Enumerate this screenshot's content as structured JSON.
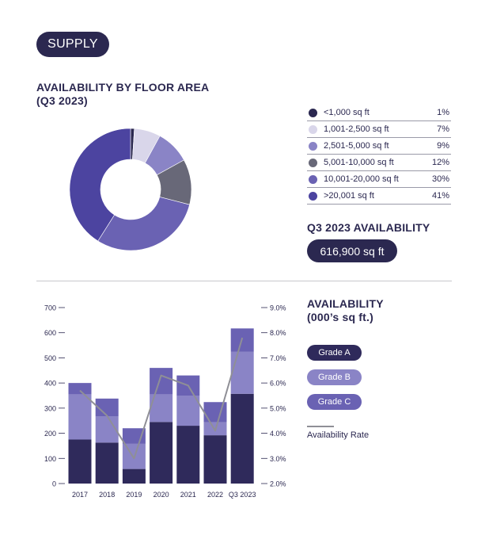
{
  "header": {
    "section_label": "SUPPLY"
  },
  "donut": {
    "title": "AVAILABILITY BY FLOOR AREA",
    "subtitle": "(Q3 2023)",
    "availability_title": "Q3 2023 AVAILABILITY",
    "availability_value": "616,900 sq ft"
  },
  "bars": {
    "title": "AVAILABILITY",
    "subtitle": "(000’s sq ft.)",
    "grade_a": "Grade A",
    "grade_b": "Grade B",
    "grade_c": "Grade C",
    "rate_label": "Availability Rate"
  },
  "chart_data": [
    {
      "type": "pie",
      "title": "AVAILABILITY BY FLOOR AREA (Q3 2023)",
      "categories": [
        "<1,000 sq ft",
        "1,001-2,500 sq ft",
        "2,501-5,000 sq ft",
        "5,001-10,000 sq ft",
        "10,001-20,000 sq ft",
        ">20,001 sq ft"
      ],
      "values": [
        1,
        7,
        9,
        12,
        30,
        41
      ],
      "value_labels": [
        "1%",
        "7%",
        "9%",
        "12%",
        "30%",
        "41%"
      ],
      "colors": [
        "#2b2850",
        "#d9d6ea",
        "#8a84c6",
        "#686878",
        "#6a62b3",
        "#4c44a0"
      ]
    },
    {
      "type": "bar",
      "stacked": true,
      "title": "AVAILABILITY (000’s sq ft.)",
      "categories": [
        "2017",
        "2018",
        "2019",
        "2020",
        "2021",
        "2022",
        "Q3 2023"
      ],
      "series": [
        {
          "name": "Grade A",
          "color": "#2f2a5b",
          "values": [
            175,
            163,
            58,
            245,
            230,
            192,
            357
          ]
        },
        {
          "name": "Grade B",
          "color": "#8a84c6",
          "values": [
            180,
            105,
            100,
            110,
            120,
            52,
            168
          ]
        },
        {
          "name": "Grade C",
          "color": "#6a62b3",
          "values": [
            45,
            70,
            62,
            105,
            80,
            80,
            92
          ]
        },
        {
          "name": "Availability Rate",
          "type": "line",
          "axis": "right",
          "color": "#8f8f96",
          "values": [
            5.7,
            4.7,
            3.0,
            6.3,
            5.9,
            4.1,
            7.8
          ]
        }
      ],
      "ylim": [
        0,
        700
      ],
      "yticks": [
        0,
        100,
        200,
        300,
        400,
        500,
        600,
        700
      ],
      "y2lim": [
        2.0,
        9.0
      ],
      "y2ticks": [
        "2.0%",
        "3.0%",
        "4.0%",
        "5.0%",
        "6.0%",
        "7.0%",
        "8.0%",
        "9.0%"
      ]
    }
  ]
}
